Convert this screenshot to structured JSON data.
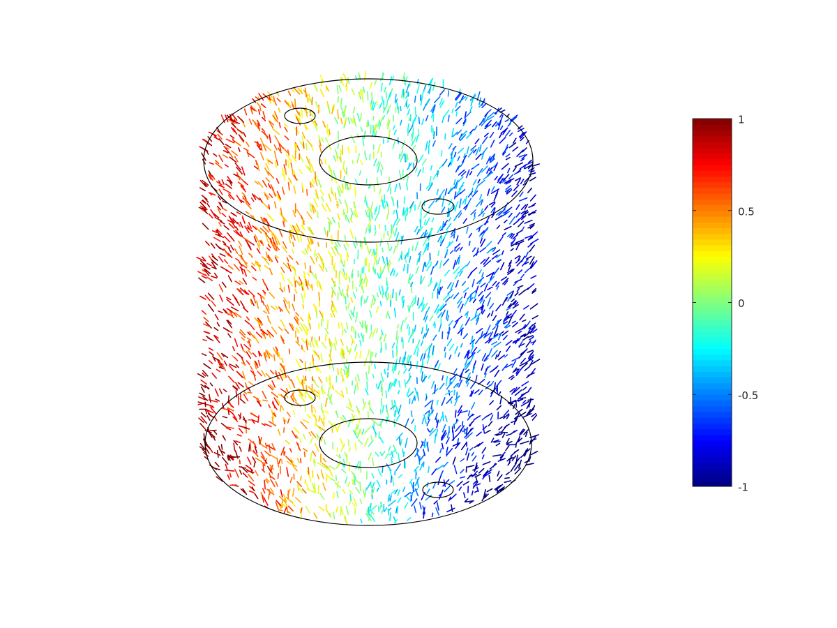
{
  "chart_data": {
    "type": "quiver3",
    "colorbar": {
      "clim": [
        -1,
        1
      ],
      "ticks": [
        1,
        0.5,
        0,
        -0.5,
        -1
      ],
      "colormap": "jet"
    }
  }
}
